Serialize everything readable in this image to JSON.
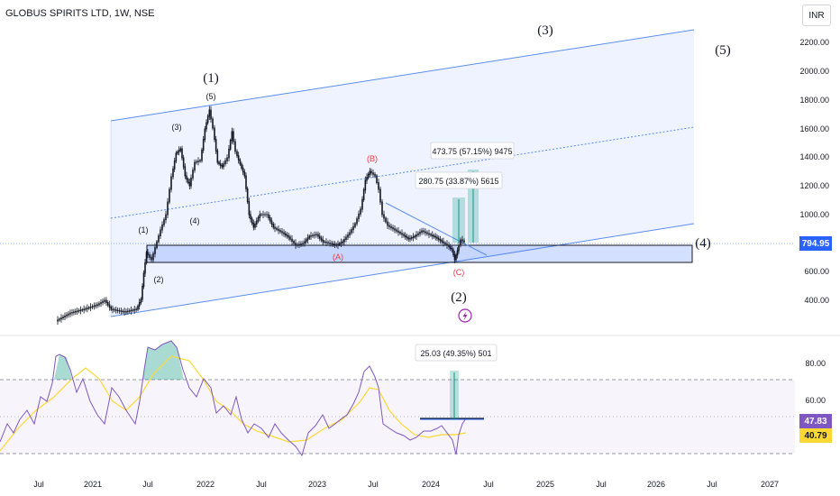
{
  "header": {
    "title": "GLOBUS SPIRITS LTD, 1W, NSE",
    "currency": "INR"
  },
  "price_axis": {
    "ticks": [
      "2200.00",
      "2000.00",
      "1800.00",
      "1600.00",
      "1400.00",
      "1200.00",
      "1000.00",
      "600.00",
      "400.00"
    ],
    "last_price": "794.95"
  },
  "rsi_axis": {
    "ticks": [
      "80.00",
      "60.00"
    ],
    "rsi_value": "47.83",
    "ma_value": "40.79"
  },
  "time_axis": [
    "Jul",
    "2021",
    "Jul",
    "2022",
    "Jul",
    "2023",
    "Jul",
    "2024",
    "Jul",
    "2025",
    "Jul",
    "2026",
    "Jul",
    "2027"
  ],
  "annotations": {
    "wave_1": "(1)",
    "wave_2": "(2)",
    "wave_3": "(3)",
    "wave_4": "(4)",
    "wave_5": "(5)",
    "sub_1": "(1)",
    "sub_2": "(2)",
    "sub_3": "(3)",
    "sub_4": "(4)",
    "sub_5": "(5)",
    "corr_a": "(A)",
    "corr_b": "(B)",
    "corr_c": "(C)",
    "measure_1": "280.75 (33.87%) 5615",
    "measure_2": "473.75 (57.15%) 9475",
    "measure_rsi": "25.03 (49.35%) 501"
  },
  "colors": {
    "candle": "#131722",
    "channel": "#2962ff",
    "zone": "#2962ff",
    "measure": "#089981",
    "rsi": "#7e57c2",
    "rsi_ma": "#fdd835",
    "corr": "#f23645",
    "last_price_bg": "#2962ff"
  },
  "icons": {
    "event_marker": "lightning-icon"
  }
}
